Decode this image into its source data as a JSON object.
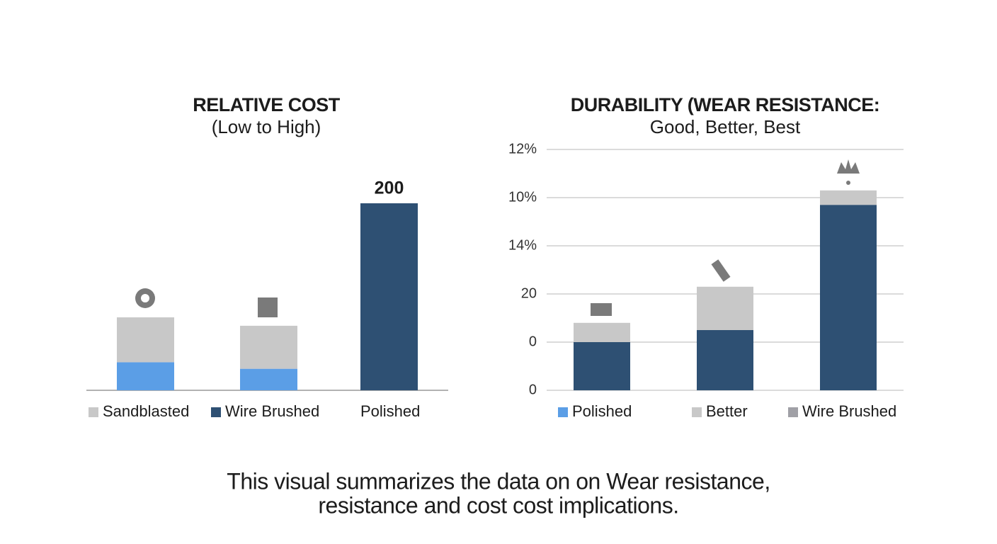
{
  "chart_data": [
    {
      "type": "stacked-bar",
      "title": "RELATIVE COST",
      "subtitle": "(Low to High)",
      "categories": [
        null,
        null,
        null
      ],
      "series": [
        {
          "color": "#5b9ee6",
          "values": [
            30,
            23,
            null
          ]
        },
        {
          "color": "#c8c8c8",
          "values": [
            48,
            46,
            null
          ]
        },
        {
          "color": "#2e5073",
          "values": [
            null,
            null,
            200
          ],
          "labels": true
        }
      ],
      "legend": [
        {
          "label": "Sandblasted",
          "color": "#c8c8c8"
        },
        {
          "label": "Wire Brushed",
          "color": "#2e5073"
        },
        {
          "label": "Polished"
        }
      ]
    },
    {
      "type": "stacked-bar",
      "title": "DURABILITY (WEAR RESISTANCE:",
      "subtitle": "Good, Better, Best",
      "categories": [
        null,
        null,
        null
      ],
      "series": [
        {
          "color": "#2e5073",
          "values": [
            2.0,
            2.5,
            7.7
          ]
        },
        {
          "color": "#c8c8c8",
          "values": [
            0.8,
            1.8,
            0.6
          ]
        }
      ],
      "ylim": [
        0,
        10
      ],
      "yticks": [
        0,
        {
          "value": 2,
          "label": "0"
        },
        {
          "value": 4,
          "label": "20"
        },
        {
          "value": 6,
          "label": "14%"
        },
        {
          "value": 8,
          "label": "10%"
        },
        {
          "value": 10,
          "label": "12%"
        }
      ],
      "grid": true,
      "legend": [
        {
          "label": "Polished",
          "color": "#5b9ee6"
        },
        {
          "label": "Better",
          "color": "#c8c8c8"
        },
        {
          "label": "Wire Brushed",
          "color": "#a0a0a6"
        }
      ]
    }
  ],
  "caption": {
    "lines": [
      "This visual summarizes the data on on Wear resistance,",
      "resistance and cost cost implications."
    ]
  }
}
